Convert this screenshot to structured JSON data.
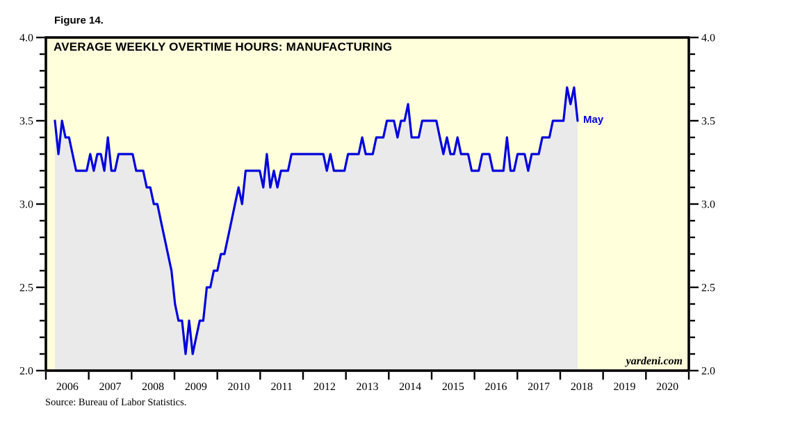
{
  "figure_label": "Figure 14.",
  "header": {
    "title": "AVERAGE WEEKLY OVERTIME HOURS: MANUFACTURING"
  },
  "annotation": {
    "last_point_label": "May"
  },
  "watermark": "yardeni.com",
  "source_note": "Source: Bureau of Labor Statistics.",
  "colors": {
    "page_bg": "#FFFFFF",
    "plot_bg": "#FFFFDC",
    "area_fill": "#EAEAEA",
    "line": "#0000DC",
    "axis": "#000000",
    "annotation_text": "#0000DC"
  },
  "chart_data": {
    "type": "line",
    "title": "AVERAGE WEEKLY OVERTIME HOURS: MANUFACTURING",
    "figure_number": "Figure 14.",
    "units": "hours per week",
    "frequency": "monthly",
    "grid": false,
    "legend_position": "none",
    "y_axis": {
      "min": 2.0,
      "max": 4.0,
      "major_ticks": [
        2.0,
        2.5,
        3.0,
        3.5,
        4.0
      ],
      "minor_step": 0.1,
      "labels_on_both_sides": true
    },
    "x_axis": {
      "year_labels": [
        "2006",
        "2007",
        "2008",
        "2009",
        "2010",
        "2011",
        "2012",
        "2013",
        "2014",
        "2015",
        "2016",
        "2017",
        "2018",
        "2019",
        "2020"
      ],
      "ticks_at": "year boundaries",
      "data_start": "2006-01",
      "data_end": "2018-05"
    },
    "series": [
      {
        "name": "Average weekly overtime hours, manufacturing",
        "start": "2006-01",
        "end": "2018-05",
        "values_by_year": {
          "2006": [
            3.5,
            3.3,
            3.5,
            3.4,
            3.4,
            3.3,
            3.2,
            3.2,
            3.2,
            3.2,
            3.3,
            3.2
          ],
          "2007": [
            3.3,
            3.3,
            3.2,
            3.4,
            3.2,
            3.2,
            3.3,
            3.3,
            3.3,
            3.3,
            3.3,
            3.2
          ],
          "2008": [
            3.2,
            3.2,
            3.1,
            3.1,
            3.0,
            3.0,
            2.9,
            2.8,
            2.7,
            2.6,
            2.4,
            2.3
          ],
          "2009": [
            2.3,
            2.1,
            2.3,
            2.1,
            2.2,
            2.3,
            2.3,
            2.5,
            2.5,
            2.6,
            2.6,
            2.7
          ],
          "2010": [
            2.7,
            2.8,
            2.9,
            3.0,
            3.1,
            3.0,
            3.2,
            3.2,
            3.2,
            3.2,
            3.2,
            3.1
          ],
          "2011": [
            3.3,
            3.1,
            3.2,
            3.1,
            3.2,
            3.2,
            3.2,
            3.3,
            3.3,
            3.3,
            3.3,
            3.3
          ],
          "2012": [
            3.3,
            3.3,
            3.3,
            3.3,
            3.3,
            3.2,
            3.3,
            3.2,
            3.2,
            3.2,
            3.2,
            3.3
          ],
          "2013": [
            3.3,
            3.3,
            3.3,
            3.4,
            3.3,
            3.3,
            3.3,
            3.4,
            3.4,
            3.4,
            3.5,
            3.5
          ],
          "2014": [
            3.5,
            3.4,
            3.5,
            3.5,
            3.6,
            3.4,
            3.4,
            3.4,
            3.5,
            3.5,
            3.5,
            3.5
          ],
          "2015": [
            3.5,
            3.4,
            3.3,
            3.4,
            3.3,
            3.3,
            3.4,
            3.3,
            3.3,
            3.3,
            3.2,
            3.2
          ],
          "2016": [
            3.2,
            3.3,
            3.3,
            3.3,
            3.2,
            3.2,
            3.2,
            3.2,
            3.4,
            3.2,
            3.2,
            3.3
          ],
          "2017": [
            3.3,
            3.3,
            3.2,
            3.3,
            3.3,
            3.3,
            3.4,
            3.4,
            3.4,
            3.5,
            3.5,
            3.5
          ],
          "2018": [
            3.5,
            3.7,
            3.6,
            3.7,
            3.5
          ]
        }
      }
    ],
    "annotations": [
      {
        "text": "May",
        "month": "2018-05",
        "value": 3.5
      }
    ]
  }
}
